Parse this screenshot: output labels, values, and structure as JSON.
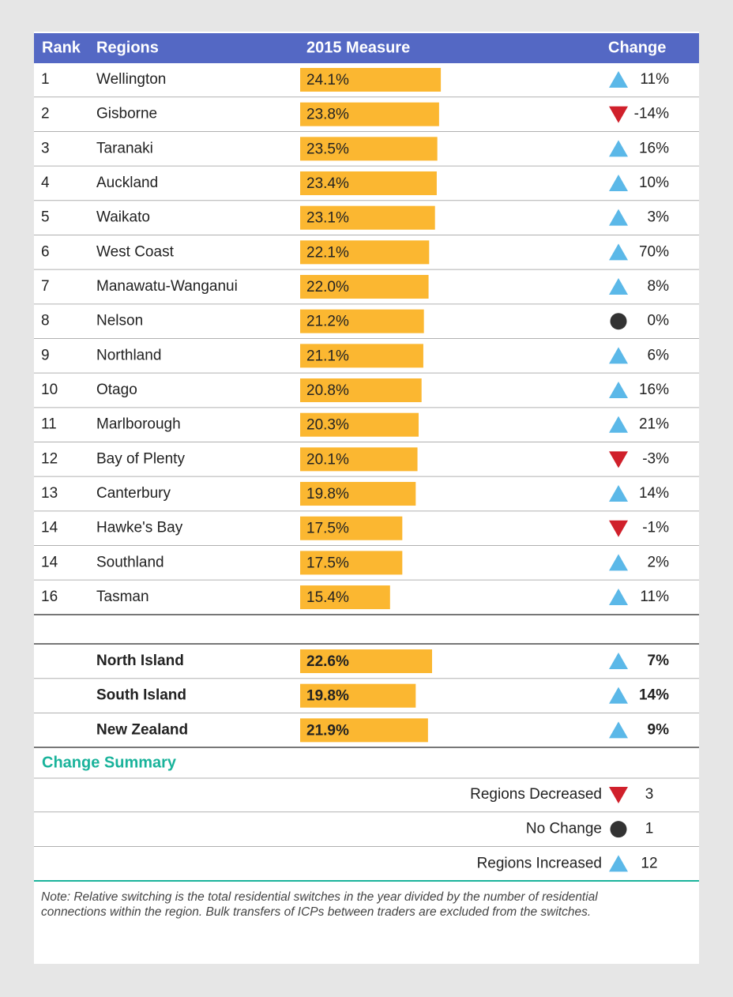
{
  "header": {
    "rank": "Rank",
    "region": "Regions",
    "measure": "2015 Measure",
    "change": "Change"
  },
  "rows": [
    {
      "rank": 1,
      "region": "Wellington",
      "measure": 24.1,
      "measure_label": "24.1%",
      "change": "11%",
      "trend": "up"
    },
    {
      "rank": 2,
      "region": "Gisborne",
      "measure": 23.8,
      "measure_label": "23.8%",
      "change": "-14%",
      "trend": "down"
    },
    {
      "rank": 3,
      "region": "Taranaki",
      "measure": 23.5,
      "measure_label": "23.5%",
      "change": "16%",
      "trend": "up"
    },
    {
      "rank": 4,
      "region": "Auckland",
      "measure": 23.4,
      "measure_label": "23.4%",
      "change": "10%",
      "trend": "up"
    },
    {
      "rank": 5,
      "region": "Waikato",
      "measure": 23.1,
      "measure_label": "23.1%",
      "change": "3%",
      "trend": "up"
    },
    {
      "rank": 6,
      "region": "West Coast",
      "measure": 22.1,
      "measure_label": "22.1%",
      "change": "70%",
      "trend": "up"
    },
    {
      "rank": 7,
      "region": "Manawatu-Wanganui",
      "measure": 22.0,
      "measure_label": "22.0%",
      "change": "8%",
      "trend": "up"
    },
    {
      "rank": 8,
      "region": "Nelson",
      "measure": 21.2,
      "measure_label": "21.2%",
      "change": "0%",
      "trend": "flat"
    },
    {
      "rank": 9,
      "region": "Northland",
      "measure": 21.1,
      "measure_label": "21.1%",
      "change": "6%",
      "trend": "up"
    },
    {
      "rank": 10,
      "region": "Otago",
      "measure": 20.8,
      "measure_label": "20.8%",
      "change": "16%",
      "trend": "up"
    },
    {
      "rank": 11,
      "region": "Marlborough",
      "measure": 20.3,
      "measure_label": "20.3%",
      "change": "21%",
      "trend": "up"
    },
    {
      "rank": 12,
      "region": "Bay of Plenty",
      "measure": 20.1,
      "measure_label": "20.1%",
      "change": "-3%",
      "trend": "down"
    },
    {
      "rank": 13,
      "region": "Canterbury",
      "measure": 19.8,
      "measure_label": "19.8%",
      "change": "14%",
      "trend": "up"
    },
    {
      "rank": 14,
      "region": "Hawke's Bay",
      "measure": 17.5,
      "measure_label": "17.5%",
      "change": "-1%",
      "trend": "down"
    },
    {
      "rank": 14,
      "region": "Southland",
      "measure": 17.5,
      "measure_label": "17.5%",
      "change": "2%",
      "trend": "up"
    },
    {
      "rank": 16,
      "region": "Tasman",
      "measure": 15.4,
      "measure_label": "15.4%",
      "change": "11%",
      "trend": "up"
    }
  ],
  "totals": [
    {
      "region": "North Island",
      "measure": 22.6,
      "measure_label": "22.6%",
      "change": "7%",
      "trend": "up"
    },
    {
      "region": "South Island",
      "measure": 19.8,
      "measure_label": "19.8%",
      "change": "14%",
      "trend": "up"
    },
    {
      "region": "New Zealand",
      "measure": 21.9,
      "measure_label": "21.9%",
      "change": "9%",
      "trend": "up"
    }
  ],
  "summary_title": "Change Summary",
  "summary": [
    {
      "label": "Regions Decreased",
      "trend": "down",
      "count": 3
    },
    {
      "label": "No Change",
      "trend": "flat",
      "count": 1
    },
    {
      "label": "Regions Increased",
      "trend": "up",
      "count": 12
    }
  ],
  "note": [
    "Note: Relative switching is the total residential switches in the year divided by the number of residential",
    "connections within the region. Bulk transfers of ICPs between traders are excluded from the switches."
  ]
}
